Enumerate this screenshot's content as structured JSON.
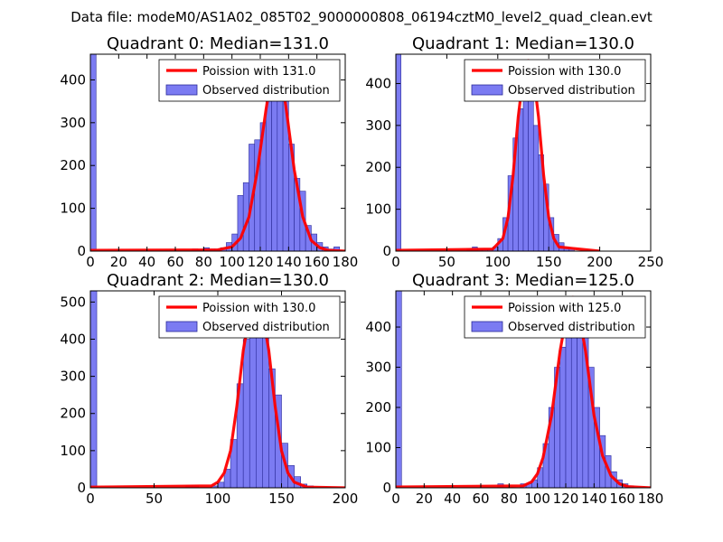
{
  "figure": {
    "title": "Data file: modeM0/AS1A02_085T02_9000000808_06194cztM0_level2_quad_clean.evt"
  },
  "colors": {
    "hist_fill": "#7b7bf2",
    "hist_edge": "#2b2b99",
    "poisson_line": "#ff0000",
    "axes": "#000000"
  },
  "chart_data": [
    {
      "type": "bar",
      "title": "Quadrant 0: Median=131.0",
      "legend": {
        "line_label": "Poission with 131.0",
        "hist_label": "Observed distribution",
        "location": "top-right"
      },
      "xlim": [
        0,
        180
      ],
      "ylim": [
        0,
        460
      ],
      "xticks": [
        0,
        20,
        40,
        60,
        80,
        100,
        120,
        140,
        160,
        180
      ],
      "yticks": [
        0,
        100,
        200,
        300,
        400
      ],
      "bin_width": 4,
      "bins_start": [
        0,
        72,
        76,
        80,
        84,
        88,
        92,
        96,
        100,
        104,
        108,
        112,
        116,
        120,
        124,
        128,
        132,
        136,
        140,
        144,
        148,
        152,
        156,
        160,
        164,
        168,
        172
      ],
      "counts": [
        460,
        5,
        3,
        8,
        5,
        5,
        8,
        20,
        40,
        130,
        160,
        250,
        260,
        300,
        350,
        390,
        400,
        350,
        250,
        170,
        140,
        60,
        40,
        20,
        10,
        5,
        10
      ],
      "poisson": {
        "x": [
          0,
          90,
          100,
          106,
          112,
          118,
          124,
          128,
          131,
          134,
          138,
          144,
          150,
          156,
          162,
          168,
          180
        ],
        "y": [
          2,
          3,
          10,
          30,
          80,
          190,
          330,
          410,
          443,
          420,
          340,
          190,
          80,
          25,
          8,
          2,
          0
        ]
      }
    },
    {
      "type": "bar",
      "title": "Quadrant 1: Median=130.0",
      "legend": {
        "line_label": "Poission with 130.0",
        "hist_label": "Observed distribution",
        "location": "top-right"
      },
      "xlim": [
        0,
        250
      ],
      "ylim": [
        0,
        470
      ],
      "xticks": [
        0,
        50,
        100,
        150,
        200,
        250
      ],
      "yticks": [
        0,
        100,
        200,
        300,
        400
      ],
      "bin_width": 5,
      "bins_start": [
        0,
        70,
        75,
        80,
        85,
        90,
        95,
        100,
        105,
        110,
        115,
        120,
        125,
        130,
        135,
        140,
        145,
        150,
        155,
        160,
        165,
        170
      ],
      "counts": [
        470,
        5,
        10,
        5,
        5,
        5,
        10,
        30,
        80,
        180,
        270,
        340,
        400,
        410,
        300,
        230,
        160,
        80,
        40,
        20,
        10,
        5
      ],
      "poisson": {
        "x": [
          0,
          95,
          105,
          110,
          115,
          120,
          125,
          130,
          135,
          140,
          145,
          150,
          155,
          160,
          200
        ],
        "y": [
          2,
          5,
          30,
          80,
          180,
          320,
          420,
          455,
          420,
          320,
          180,
          80,
          30,
          10,
          0
        ]
      }
    },
    {
      "type": "bar",
      "title": "Quadrant 2: Median=130.0",
      "legend": {
        "line_label": "Poission with 130.0",
        "hist_label": "Observed distribution",
        "location": "top-right"
      },
      "xlim": [
        0,
        200
      ],
      "ylim": [
        0,
        530
      ],
      "xticks": [
        0,
        50,
        100,
        150,
        200
      ],
      "yticks": [
        0,
        100,
        200,
        300,
        400,
        500
      ],
      "bin_width": 5,
      "bins_start": [
        0,
        75,
        80,
        95,
        100,
        105,
        110,
        115,
        120,
        125,
        130,
        135,
        140,
        145,
        150,
        155,
        160,
        165,
        170
      ],
      "counts": [
        530,
        5,
        5,
        5,
        15,
        50,
        130,
        280,
        400,
        480,
        450,
        420,
        320,
        250,
        120,
        60,
        30,
        10,
        5
      ],
      "poisson": {
        "x": [
          0,
          95,
          100,
          105,
          110,
          115,
          120,
          125,
          130,
          135,
          140,
          145,
          150,
          155,
          160,
          170,
          200
        ],
        "y": [
          2,
          5,
          15,
          40,
          100,
          220,
          370,
          470,
          505,
          470,
          370,
          220,
          100,
          40,
          15,
          2,
          0
        ]
      }
    },
    {
      "type": "bar",
      "title": "Quadrant 3: Median=125.0",
      "legend": {
        "line_label": "Poission with 125.0",
        "hist_label": "Observed distribution",
        "location": "top-right"
      },
      "xlim": [
        0,
        180
      ],
      "ylim": [
        0,
        490
      ],
      "xticks": [
        0,
        20,
        40,
        60,
        80,
        100,
        120,
        140,
        160,
        180
      ],
      "yticks": [
        0,
        100,
        200,
        300,
        400
      ],
      "bin_width": 4,
      "bins_start": [
        0,
        72,
        88,
        92,
        96,
        100,
        104,
        108,
        112,
        116,
        120,
        124,
        128,
        132,
        136,
        140,
        144,
        148,
        152,
        156,
        160,
        164
      ],
      "counts": [
        490,
        10,
        10,
        10,
        20,
        50,
        110,
        200,
        300,
        350,
        400,
        420,
        450,
        400,
        300,
        200,
        130,
        80,
        40,
        20,
        10,
        5
      ],
      "poisson": {
        "x": [
          0,
          90,
          96,
          100,
          104,
          110,
          116,
          121,
          125,
          129,
          134,
          140,
          146,
          152,
          158,
          164,
          180
        ],
        "y": [
          2,
          5,
          15,
          35,
          75,
          180,
          340,
          440,
          474,
          440,
          340,
          180,
          80,
          30,
          10,
          3,
          0
        ]
      }
    }
  ]
}
